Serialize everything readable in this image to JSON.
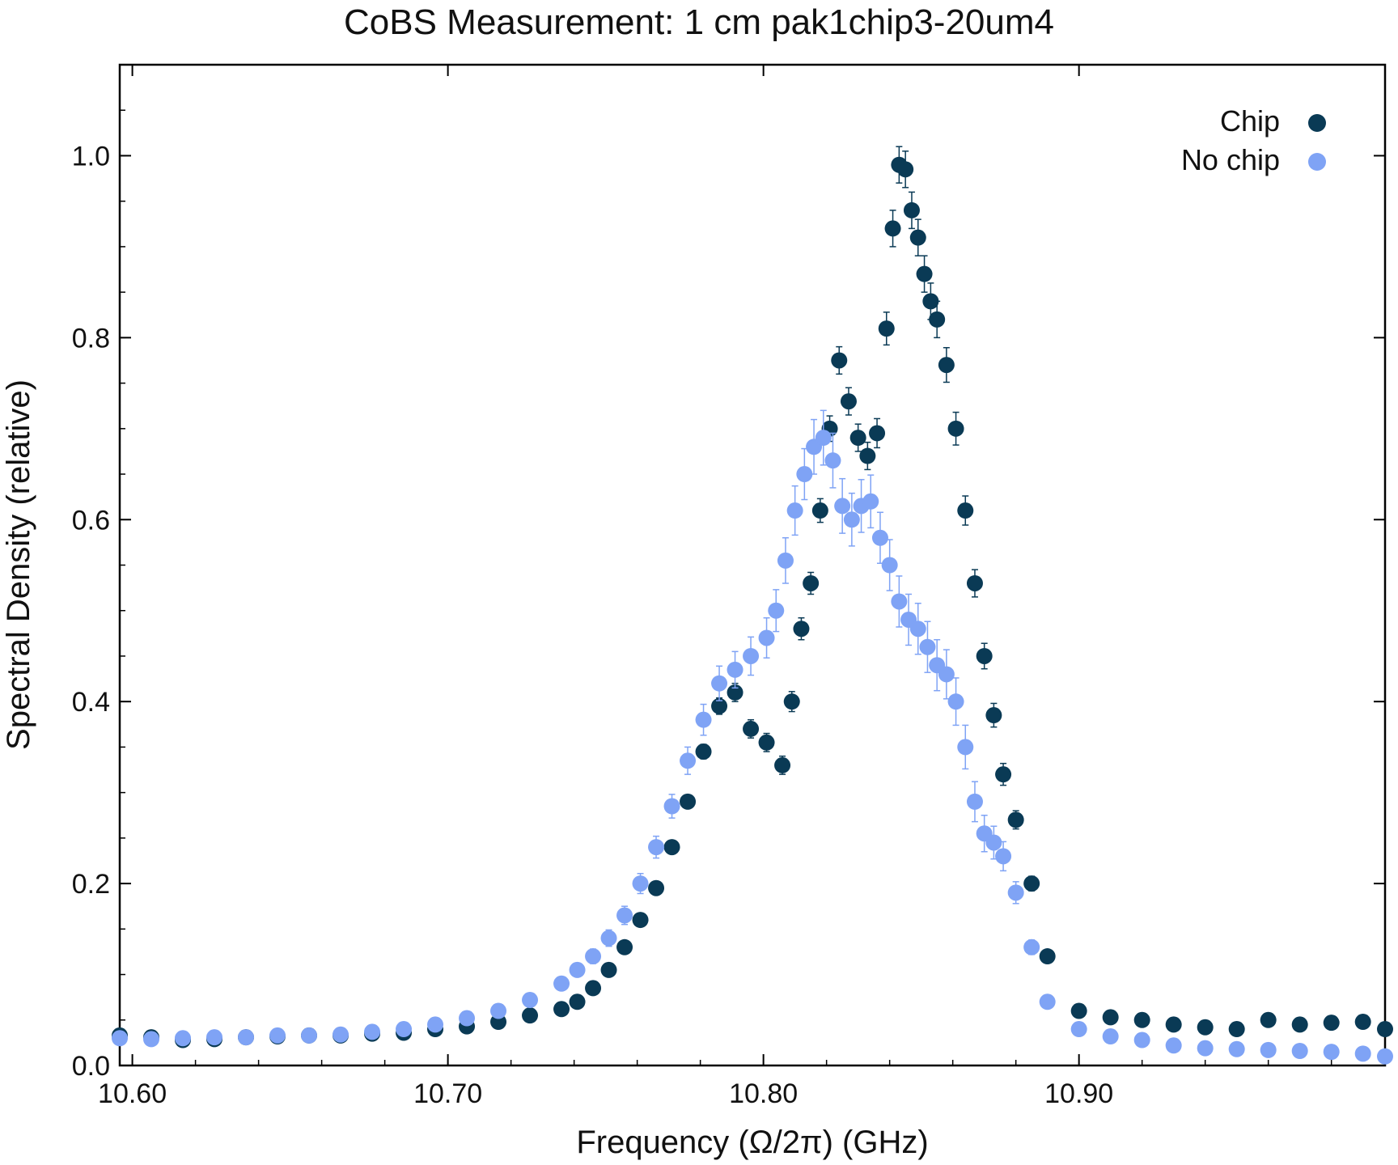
{
  "chart_data": {
    "type": "scatter",
    "title": "CoBS Measurement: 1 cm pak1chip3-20um4",
    "xlabel": "Frequency (Ω/2π) (GHz)",
    "ylabel": "Spectral Density (relative)",
    "xlim": [
      10.596,
      10.997
    ],
    "ylim": [
      0.0,
      1.1
    ],
    "x_ticks": [
      10.6,
      10.7,
      10.8,
      10.9
    ],
    "x_tick_labels": [
      "10.60",
      "10.70",
      "10.80",
      "10.90"
    ],
    "y_ticks": [
      0.0,
      0.2,
      0.4,
      0.6,
      0.8,
      1.0
    ],
    "y_tick_labels": [
      "0.0",
      "0.2",
      "0.4",
      "0.6",
      "0.8",
      "1.0"
    ],
    "grid": false,
    "legend_position": "top-right",
    "series": [
      {
        "name": "Chip",
        "color": "#0a3a55",
        "x": [
          10.596,
          10.606,
          10.616,
          10.626,
          10.636,
          10.646,
          10.656,
          10.666,
          10.676,
          10.686,
          10.696,
          10.706,
          10.716,
          10.726,
          10.736,
          10.741,
          10.746,
          10.751,
          10.756,
          10.761,
          10.766,
          10.771,
          10.776,
          10.781,
          10.786,
          10.791,
          10.796,
          10.801,
          10.806,
          10.809,
          10.812,
          10.815,
          10.818,
          10.821,
          10.824,
          10.827,
          10.83,
          10.833,
          10.836,
          10.839,
          10.841,
          10.843,
          10.845,
          10.847,
          10.849,
          10.851,
          10.853,
          10.855,
          10.858,
          10.861,
          10.864,
          10.867,
          10.87,
          10.873,
          10.876,
          10.88,
          10.885,
          10.89,
          10.9,
          10.91,
          10.92,
          10.93,
          10.94,
          10.95,
          10.96,
          10.97,
          10.98,
          10.99,
          10.997
        ],
        "y": [
          0.033,
          0.031,
          0.028,
          0.029,
          0.031,
          0.032,
          0.033,
          0.033,
          0.035,
          0.036,
          0.04,
          0.043,
          0.048,
          0.055,
          0.062,
          0.07,
          0.085,
          0.105,
          0.13,
          0.16,
          0.195,
          0.24,
          0.29,
          0.345,
          0.395,
          0.41,
          0.37,
          0.355,
          0.33,
          0.4,
          0.48,
          0.53,
          0.61,
          0.7,
          0.775,
          0.73,
          0.69,
          0.67,
          0.695,
          0.81,
          0.92,
          0.99,
          0.985,
          0.94,
          0.91,
          0.87,
          0.84,
          0.82,
          0.77,
          0.7,
          0.61,
          0.53,
          0.45,
          0.385,
          0.32,
          0.27,
          0.2,
          0.12,
          0.06,
          0.053,
          0.05,
          0.045,
          0.042,
          0.04,
          0.05,
          0.045,
          0.047,
          0.048,
          0.04
        ],
        "error": [
          0.003,
          0.003,
          0.003,
          0.003,
          0.003,
          0.003,
          0.003,
          0.003,
          0.003,
          0.003,
          0.003,
          0.003,
          0.003,
          0.003,
          0.003,
          0.004,
          0.004,
          0.004,
          0.004,
          0.005,
          0.005,
          0.006,
          0.007,
          0.008,
          0.009,
          0.01,
          0.01,
          0.01,
          0.01,
          0.011,
          0.012,
          0.012,
          0.013,
          0.014,
          0.015,
          0.015,
          0.015,
          0.015,
          0.016,
          0.018,
          0.02,
          0.02,
          0.02,
          0.02,
          0.02,
          0.02,
          0.02,
          0.02,
          0.019,
          0.018,
          0.016,
          0.015,
          0.014,
          0.013,
          0.012,
          0.01,
          0.008,
          0.006,
          0.004,
          0.004,
          0.004,
          0.004,
          0.004,
          0.004,
          0.004,
          0.004,
          0.004,
          0.004,
          0.004
        ]
      },
      {
        "name": "No chip",
        "color": "#7fa3f5",
        "x": [
          10.596,
          10.606,
          10.616,
          10.626,
          10.636,
          10.646,
          10.656,
          10.666,
          10.676,
          10.686,
          10.696,
          10.706,
          10.716,
          10.726,
          10.736,
          10.741,
          10.746,
          10.751,
          10.756,
          10.761,
          10.766,
          10.771,
          10.776,
          10.781,
          10.786,
          10.791,
          10.796,
          10.801,
          10.804,
          10.807,
          10.81,
          10.813,
          10.816,
          10.819,
          10.822,
          10.825,
          10.828,
          10.831,
          10.834,
          10.837,
          10.84,
          10.843,
          10.846,
          10.849,
          10.852,
          10.855,
          10.858,
          10.861,
          10.864,
          10.867,
          10.87,
          10.873,
          10.876,
          10.88,
          10.885,
          10.89,
          10.9,
          10.91,
          10.92,
          10.93,
          10.94,
          10.95,
          10.96,
          10.97,
          10.98,
          10.99,
          10.997
        ],
        "y": [
          0.03,
          0.029,
          0.03,
          0.031,
          0.031,
          0.033,
          0.033,
          0.034,
          0.037,
          0.04,
          0.045,
          0.052,
          0.06,
          0.072,
          0.09,
          0.105,
          0.12,
          0.14,
          0.165,
          0.2,
          0.24,
          0.285,
          0.335,
          0.38,
          0.42,
          0.435,
          0.45,
          0.47,
          0.5,
          0.555,
          0.61,
          0.65,
          0.68,
          0.69,
          0.665,
          0.615,
          0.6,
          0.615,
          0.62,
          0.58,
          0.55,
          0.51,
          0.49,
          0.48,
          0.46,
          0.44,
          0.43,
          0.4,
          0.35,
          0.29,
          0.255,
          0.245,
          0.23,
          0.19,
          0.13,
          0.07,
          0.04,
          0.032,
          0.028,
          0.022,
          0.019,
          0.018,
          0.017,
          0.016,
          0.015,
          0.013,
          0.01
        ],
        "error": [
          0.003,
          0.003,
          0.003,
          0.003,
          0.003,
          0.003,
          0.003,
          0.003,
          0.003,
          0.003,
          0.004,
          0.004,
          0.004,
          0.005,
          0.006,
          0.007,
          0.008,
          0.009,
          0.01,
          0.011,
          0.012,
          0.013,
          0.015,
          0.017,
          0.019,
          0.02,
          0.021,
          0.022,
          0.023,
          0.025,
          0.027,
          0.028,
          0.03,
          0.03,
          0.03,
          0.03,
          0.029,
          0.029,
          0.029,
          0.028,
          0.028,
          0.028,
          0.028,
          0.028,
          0.028,
          0.028,
          0.027,
          0.026,
          0.024,
          0.022,
          0.02,
          0.018,
          0.016,
          0.012,
          0.008,
          0.005,
          0.004,
          0.003,
          0.003,
          0.003,
          0.003,
          0.003,
          0.003,
          0.003,
          0.003,
          0.003,
          0.003
        ]
      }
    ]
  }
}
